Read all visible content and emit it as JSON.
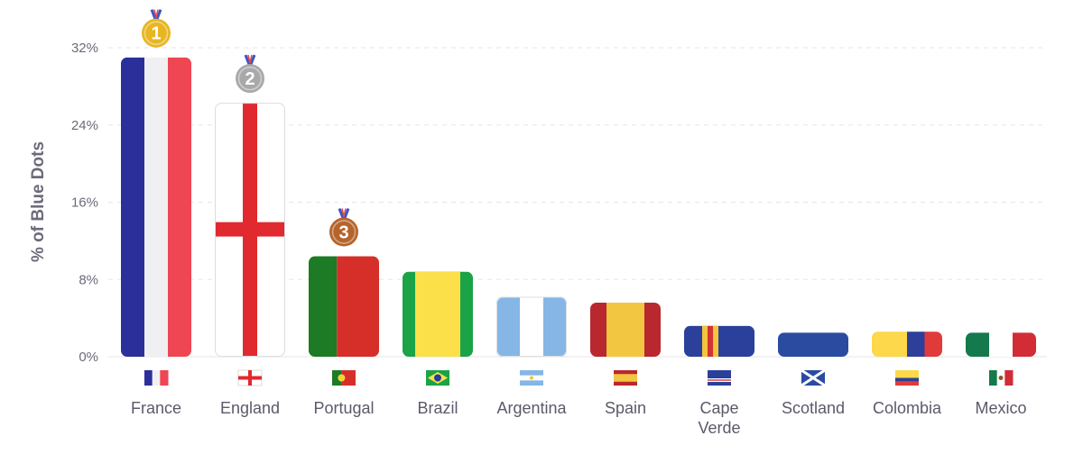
{
  "chart_data": {
    "type": "bar",
    "ylabel": "% of Blue Dots",
    "ylim": [
      0,
      32
    ],
    "yticks": [
      "0%",
      "8%",
      "16%",
      "24%",
      "32%"
    ],
    "grid": true,
    "categories": [
      "France",
      "England",
      "Portugal",
      "Brazil",
      "Argentina",
      "Spain",
      "Cape Verde",
      "Scotland",
      "Colombia",
      "Mexico"
    ],
    "values": [
      31.0,
      26.3,
      10.4,
      8.8,
      6.2,
      5.6,
      3.2,
      2.5,
      2.6,
      2.5
    ],
    "medals": [
      {
        "category": "France",
        "rank": "1",
        "color": "#e8b623"
      },
      {
        "category": "England",
        "rank": "2",
        "color": "#a9a9a9"
      },
      {
        "category": "Portugal",
        "rank": "3",
        "color": "#b5652c"
      }
    ],
    "bar_styles": [
      {
        "flag": "france",
        "colors": [
          "#2b2f9a",
          "#f0f0f2",
          "#ee4652"
        ]
      },
      {
        "flag": "england",
        "colors": [
          "#ffffff",
          "#e02a2f"
        ]
      },
      {
        "flag": "portugal",
        "colors": [
          "#1d7a25",
          "#d62f2a"
        ]
      },
      {
        "flag": "brazil",
        "colors": [
          "#1aa347",
          "#fbe04a"
        ]
      },
      {
        "flag": "argentina",
        "colors": [
          "#85b6e5",
          "#ffffff"
        ]
      },
      {
        "flag": "spain",
        "colors": [
          "#b8282e",
          "#f2c640"
        ]
      },
      {
        "flag": "cape-verde",
        "colors": [
          "#2a409a",
          "#f2c53d",
          "#d43333"
        ]
      },
      {
        "flag": "scotland",
        "colors": [
          "#2a4ba0"
        ]
      },
      {
        "flag": "colombia",
        "colors": [
          "#fcd84a",
          "#2d3f9b",
          "#e13a3a"
        ]
      },
      {
        "flag": "mexico",
        "colors": [
          "#147a4e",
          "#ffffff",
          "#d22c37"
        ]
      }
    ]
  }
}
